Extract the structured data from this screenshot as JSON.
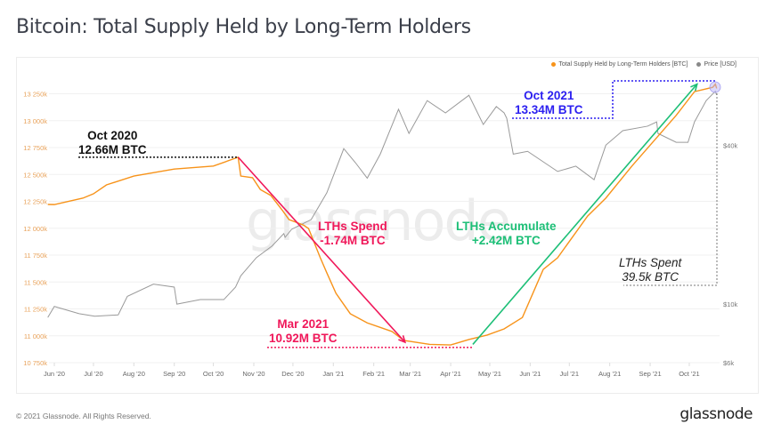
{
  "title": "Bitcoin: Total Supply Held by Long-Term Holders",
  "footer": {
    "copyright": "© 2021 Glassnode. All Rights Reserved.",
    "logo": "glassnode"
  },
  "watermark": "glassnode",
  "colors": {
    "supply": "#f7931a",
    "price": "#9a9a9a",
    "spend": "#f0185a",
    "accumulate": "#1dbf77",
    "oct2021": "#2b1ff0",
    "oct2020": "#111111",
    "spent": "#555555"
  },
  "chart_data": {
    "type": "line",
    "title": "Bitcoin: Total Supply Held by Long-Term Holders",
    "legend_position": "top-right",
    "grid": true,
    "x_range": [
      "2020-05-27",
      "2021-10-24"
    ],
    "x_ticks": [
      "Jun '20",
      "Jul '20",
      "Aug '20",
      "Sep '20",
      "Oct '20",
      "Nov '20",
      "Dec '20",
      "Jan '21",
      "Feb '21",
      "Mar '21",
      "Apr '21",
      "May '21",
      "Jun '21",
      "Jul '21",
      "Aug '21",
      "Sep '21",
      "Oct '21"
    ],
    "y_left": {
      "ylim": [
        10750,
        13250
      ],
      "unit": "k BTC",
      "ticks": [
        "10 750k",
        "11 000k",
        "11 250k",
        "11 500k",
        "11 750k",
        "12 000k",
        "12 250k",
        "12 500k",
        "12 750k",
        "13 000k",
        "13 250k"
      ]
    },
    "y_right": {
      "scale": "log",
      "ylim": [
        6000,
        70000
      ],
      "ticks": [
        {
          "label": "$6k",
          "value": 6000
        },
        {
          "label": "$10k",
          "value": 10000
        },
        {
          "label": "$40k",
          "value": 40000
        }
      ]
    },
    "series": [
      {
        "name": "Total Supply Held by Long-Term Holders [BTC]",
        "axis": "left",
        "color": "#f7931a",
        "points": [
          [
            "2020-05-27",
            12221
          ],
          [
            "2020-06-01",
            12220
          ],
          [
            "2020-06-23",
            12280
          ],
          [
            "2020-07-01",
            12320
          ],
          [
            "2020-07-11",
            12403
          ],
          [
            "2020-08-01",
            12485
          ],
          [
            "2020-09-01",
            12550
          ],
          [
            "2020-10-01",
            12578
          ],
          [
            "2020-10-20",
            12660
          ],
          [
            "2020-10-22",
            12485
          ],
          [
            "2020-10-31",
            12470
          ],
          [
            "2020-11-06",
            12360
          ],
          [
            "2020-11-14",
            12305
          ],
          [
            "2020-11-23",
            12165
          ],
          [
            "2020-11-28",
            12080
          ],
          [
            "2020-12-09",
            12030
          ],
          [
            "2020-12-13",
            11997
          ],
          [
            "2020-12-22",
            11725
          ],
          [
            "2020-12-27",
            11585
          ],
          [
            "2021-01-03",
            11395
          ],
          [
            "2021-01-14",
            11205
          ],
          [
            "2021-01-27",
            11120
          ],
          [
            "2021-02-15",
            11040
          ],
          [
            "2021-02-24",
            10957
          ],
          [
            "2021-03-16",
            10920
          ],
          [
            "2021-04-01",
            10915
          ],
          [
            "2021-04-15",
            10965
          ],
          [
            "2021-04-29",
            11007
          ],
          [
            "2021-05-12",
            11064
          ],
          [
            "2021-05-26",
            11170
          ],
          [
            "2021-06-11",
            11617
          ],
          [
            "2021-06-22",
            11725
          ],
          [
            "2021-07-15",
            12113
          ],
          [
            "2021-07-29",
            12280
          ],
          [
            "2021-08-18",
            12578
          ],
          [
            "2021-09-03",
            12800
          ],
          [
            "2021-09-21",
            13050
          ],
          [
            "2021-10-05",
            13270
          ],
          [
            "2021-10-19",
            13310
          ],
          [
            "2021-10-21",
            13340
          ],
          [
            "2021-10-22",
            13300
          ]
        ]
      },
      {
        "name": "Price [USD]",
        "axis": "right",
        "color": "#9a9a9a",
        "points": [
          [
            "2020-05-27",
            8900
          ],
          [
            "2020-06-01",
            9800
          ],
          [
            "2020-06-20",
            9200
          ],
          [
            "2020-07-02",
            9000
          ],
          [
            "2020-07-20",
            9100
          ],
          [
            "2020-07-27",
            10700
          ],
          [
            "2020-08-16",
            11900
          ],
          [
            "2020-09-01",
            11600
          ],
          [
            "2020-09-03",
            10000
          ],
          [
            "2020-09-21",
            10400
          ],
          [
            "2020-10-09",
            10400
          ],
          [
            "2020-10-18",
            11600
          ],
          [
            "2020-10-22",
            12800
          ],
          [
            "2020-11-03",
            15000
          ],
          [
            "2020-11-15",
            16600
          ],
          [
            "2020-11-24",
            18500
          ],
          [
            "2020-11-25",
            17900
          ],
          [
            "2020-11-30",
            19200
          ],
          [
            "2020-12-15",
            20900
          ],
          [
            "2020-12-27",
            26400
          ],
          [
            "2021-01-09",
            38800
          ],
          [
            "2021-01-18",
            34300
          ],
          [
            "2021-01-27",
            30000
          ],
          [
            "2021-02-06",
            37000
          ],
          [
            "2021-02-20",
            54700
          ],
          [
            "2021-02-28",
            44300
          ],
          [
            "2021-03-14",
            59000
          ],
          [
            "2021-03-28",
            53000
          ],
          [
            "2021-04-15",
            61800
          ],
          [
            "2021-04-26",
            47900
          ],
          [
            "2021-05-06",
            56000
          ],
          [
            "2021-05-12",
            53000
          ],
          [
            "2021-05-14",
            50600
          ],
          [
            "2021-05-19",
            37000
          ],
          [
            "2021-05-30",
            37900
          ],
          [
            "2021-06-22",
            31800
          ],
          [
            "2021-07-06",
            33300
          ],
          [
            "2021-07-20",
            29600
          ],
          [
            "2021-07-29",
            40000
          ],
          [
            "2021-08-11",
            45400
          ],
          [
            "2021-08-30",
            47200
          ],
          [
            "2021-09-06",
            49000
          ],
          [
            "2021-09-07",
            44300
          ],
          [
            "2021-09-21",
            41000
          ],
          [
            "2021-09-30",
            41000
          ],
          [
            "2021-10-05",
            49000
          ],
          [
            "2021-10-14",
            59000
          ],
          [
            "2021-10-21",
            64000
          ],
          [
            "2021-10-22",
            62000
          ]
        ]
      }
    ],
    "annotations": [
      {
        "id": "oct2020",
        "lines": [
          "Oct 2020",
          "12.66M BTC"
        ],
        "color": "#111111"
      },
      {
        "id": "spend",
        "lines": [
          "LTHs Spend",
          "-1.74M BTC"
        ],
        "color": "#f0185a",
        "arrow": {
          "from": [
            "2020-10-20",
            12660
          ],
          "to": [
            "2021-02-25",
            10940
          ]
        }
      },
      {
        "id": "mar2021",
        "lines": [
          "Mar 2021",
          "10.92M BTC"
        ],
        "color": "#f0185a"
      },
      {
        "id": "accumulate",
        "lines": [
          "LTHs Accumulate",
          "+2.42M BTC"
        ],
        "color": "#1dbf77",
        "arrow": {
          "from": [
            "2021-04-18",
            10920
          ],
          "to": [
            "2021-10-07",
            13340
          ]
        }
      },
      {
        "id": "oct2021",
        "lines": [
          "Oct 2021",
          "13.34M BTC"
        ],
        "color": "#2b1ff0"
      },
      {
        "id": "spent",
        "lines": [
          "LTHs Spent",
          "39.5k BTC"
        ],
        "color": "#222222"
      }
    ]
  }
}
